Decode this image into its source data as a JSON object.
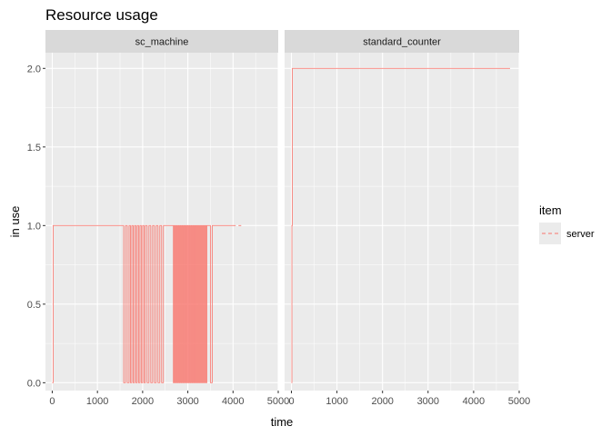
{
  "chart_data": {
    "type": "line",
    "title": "Resource usage",
    "xlabel": "time",
    "ylabel": "in use",
    "xlim": [
      -150,
      5000
    ],
    "ylim": [
      -0.05,
      2.1
    ],
    "x_ticks": [
      0,
      1000,
      2000,
      3000,
      4000,
      5000
    ],
    "x_tick_labels": [
      "0",
      "1000",
      "2000",
      "3000",
      "4000",
      "5000"
    ],
    "y_ticks": [
      0.0,
      0.5,
      1.0,
      1.5,
      2.0
    ],
    "y_tick_labels": [
      "0.0",
      "0.5",
      "1.0",
      "1.5",
      "2.0"
    ],
    "grid": true,
    "legend": {
      "title": "item",
      "position": "right",
      "entries": [
        "server"
      ]
    },
    "colors": {
      "series": "#F8766D",
      "panel_bg": "#EBEBEB",
      "strip_bg": "#D9D9D9",
      "grid": "#FFFFFF"
    },
    "facets": [
      {
        "name": "sc_machine",
        "series": [
          {
            "name": "server",
            "steps": [
              [
                0,
                0
              ],
              [
                20,
                1
              ],
              [
                1580,
                0
              ],
              [
                1620,
                1
              ],
              [
                1660,
                0
              ],
              [
                1700,
                1
              ],
              [
                1730,
                0
              ],
              [
                1760,
                1
              ],
              [
                1790,
                0
              ],
              [
                1820,
                1
              ],
              [
                1850,
                0
              ],
              [
                1880,
                1
              ],
              [
                1910,
                0
              ],
              [
                1940,
                1
              ],
              [
                1970,
                0
              ],
              [
                2000,
                1
              ],
              [
                2030,
                0
              ],
              [
                2060,
                1
              ],
              [
                2100,
                0
              ],
              [
                2140,
                1
              ],
              [
                2180,
                0
              ],
              [
                2220,
                1
              ],
              [
                2260,
                0
              ],
              [
                2300,
                1
              ],
              [
                2340,
                0
              ],
              [
                2380,
                1
              ],
              [
                2420,
                0
              ],
              [
                2460,
                1
              ],
              [
                2520,
                1
              ],
              [
                2580,
                1
              ],
              [
                2640,
                1
              ],
              [
                2680,
                0
              ],
              [
                2700,
                1
              ],
              [
                2720,
                0
              ],
              [
                2740,
                1
              ],
              [
                2760,
                0
              ],
              [
                2780,
                1
              ],
              [
                2800,
                0
              ],
              [
                2820,
                1
              ],
              [
                2840,
                0
              ],
              [
                2860,
                1
              ],
              [
                2880,
                0
              ],
              [
                2900,
                1
              ],
              [
                2920,
                0
              ],
              [
                2940,
                1
              ],
              [
                2960,
                0
              ],
              [
                2980,
                1
              ],
              [
                3000,
                0
              ],
              [
                3020,
                1
              ],
              [
                3040,
                0
              ],
              [
                3060,
                1
              ],
              [
                3080,
                0
              ],
              [
                3100,
                1
              ],
              [
                3120,
                0
              ],
              [
                3140,
                1
              ],
              [
                3160,
                0
              ],
              [
                3180,
                1
              ],
              [
                3200,
                0
              ],
              [
                3220,
                1
              ],
              [
                3240,
                0
              ],
              [
                3260,
                1
              ],
              [
                3280,
                0
              ],
              [
                3300,
                1
              ],
              [
                3320,
                0
              ],
              [
                3340,
                1
              ],
              [
                3360,
                0
              ],
              [
                3380,
                1
              ],
              [
                3400,
                0
              ],
              [
                3420,
                1
              ],
              [
                3460,
                1
              ],
              [
                3500,
                0
              ],
              [
                3540,
                1
              ],
              [
                3600,
                1
              ],
              [
                3660,
                1
              ],
              [
                3720,
                1
              ],
              [
                3780,
                1
              ],
              [
                3850,
                1
              ],
              [
                3950,
                1
              ],
              [
                4000,
                1
              ]
            ]
          }
        ]
      },
      {
        "name": "standard_counter",
        "series": [
          {
            "name": "server",
            "steps": [
              [
                0,
                0
              ],
              [
                10,
                1
              ],
              [
                20,
                2
              ],
              [
                4800,
                2
              ]
            ]
          }
        ]
      }
    ]
  }
}
